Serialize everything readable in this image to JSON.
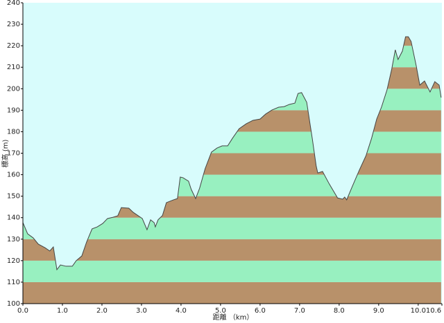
{
  "chart_data": {
    "type": "area",
    "x_label": "距離 （km）",
    "y_label": "標高 (m)",
    "x": [
      0.0,
      0.12,
      0.26,
      0.39,
      0.56,
      0.68,
      0.77,
      0.86,
      0.95,
      1.09,
      1.25,
      1.35,
      1.49,
      1.61,
      1.75,
      1.88,
      2.02,
      2.14,
      2.28,
      2.4,
      2.49,
      2.68,
      2.79,
      3.02,
      3.14,
      3.23,
      3.32,
      3.35,
      3.42,
      3.53,
      3.63,
      3.81,
      3.91,
      3.98,
      4.05,
      4.19,
      4.26,
      4.37,
      4.47,
      4.61,
      4.77,
      4.91,
      5.04,
      5.18,
      5.3,
      5.47,
      5.65,
      5.82,
      6.0,
      6.14,
      6.3,
      6.47,
      6.61,
      6.74,
      6.88,
      6.96,
      7.05,
      7.18,
      7.32,
      7.42,
      7.46,
      7.58,
      7.75,
      7.96,
      8.09,
      8.14,
      8.19,
      8.33,
      8.51,
      8.68,
      8.82,
      8.95,
      9.07,
      9.21,
      9.33,
      9.42,
      9.49,
      9.6,
      9.68,
      9.75,
      9.82,
      9.95,
      10.04,
      10.16,
      10.3,
      10.42,
      10.53,
      10.58
    ],
    "values": [
      137.7,
      132.5,
      130.6,
      127.7,
      126.0,
      124.5,
      126.4,
      115.8,
      118.0,
      117.4,
      117.4,
      120.0,
      122.2,
      128.6,
      134.8,
      135.7,
      137.3,
      139.6,
      140.2,
      140.9,
      144.7,
      144.4,
      142.5,
      139.6,
      134.4,
      139.0,
      137.7,
      135.7,
      139.0,
      141.0,
      147.0,
      148.3,
      148.9,
      158.9,
      158.6,
      157.0,
      153.1,
      148.9,
      153.7,
      162.8,
      170.5,
      172.4,
      173.4,
      173.4,
      176.9,
      181.4,
      183.7,
      185.3,
      185.9,
      188.2,
      190.1,
      191.4,
      191.7,
      192.7,
      193.3,
      197.8,
      198.2,
      193.7,
      176.9,
      164.0,
      160.8,
      161.5,
      155.7,
      149.2,
      148.6,
      149.6,
      148.3,
      154.4,
      162.1,
      168.9,
      176.9,
      185.9,
      191.4,
      199.4,
      209.1,
      218.1,
      213.6,
      217.5,
      224.2,
      224.2,
      222.0,
      210.7,
      201.7,
      203.6,
      198.5,
      203.3,
      201.7,
      195.9
    ],
    "xlim": [
      0,
      10.6
    ],
    "ylim": [
      100,
      240
    ],
    "xticks": [
      {
        "value": 0,
        "label": "0.0"
      },
      {
        "value": 1,
        "label": "1.0"
      },
      {
        "value": 2,
        "label": "2.0"
      },
      {
        "value": 3,
        "label": "3.0"
      },
      {
        "value": 4,
        "label": "4.0"
      },
      {
        "value": 5,
        "label": "5.0"
      },
      {
        "value": 6,
        "label": "6.0"
      },
      {
        "value": 7,
        "label": "7.0"
      },
      {
        "value": 8,
        "label": "8.0"
      },
      {
        "value": 9,
        "label": "9.0"
      },
      {
        "value": 10,
        "label": "10.0"
      },
      10.6
    ],
    "yticks": [
      100,
      110,
      120,
      130,
      140,
      150,
      160,
      170,
      180,
      190,
      200,
      210,
      220,
      230,
      240
    ],
    "band_colors": [
      "#b8916a",
      "#98f0c0"
    ],
    "background": "#d8fcfc",
    "line_color": "#444444"
  }
}
